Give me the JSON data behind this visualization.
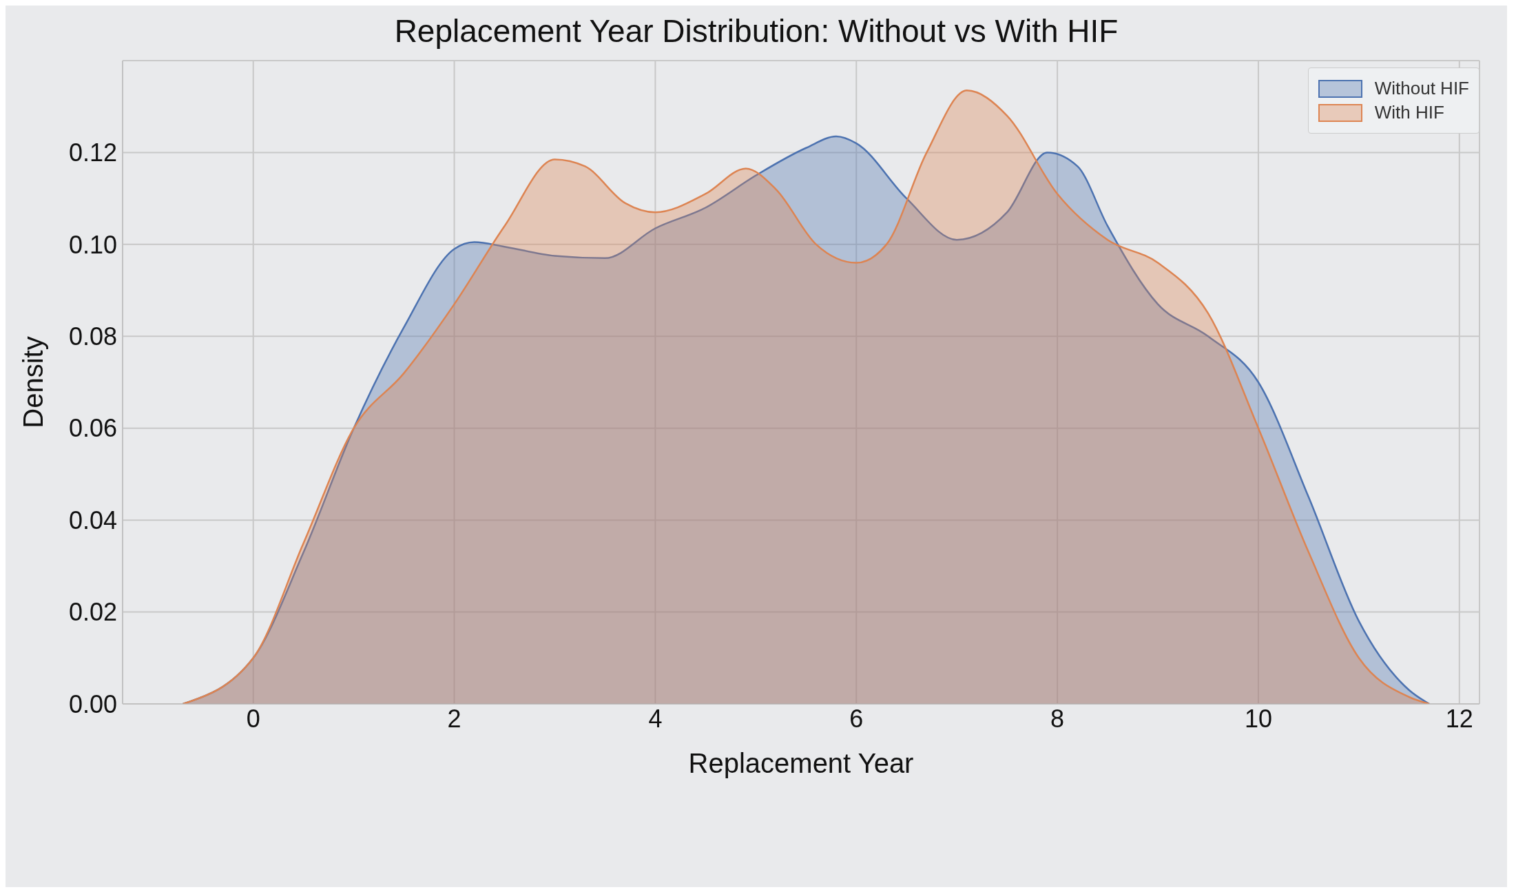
{
  "chart_data": {
    "type": "area",
    "title": "Replacement Year Distribution: Without vs With HIF",
    "xlabel": "Replacement Year",
    "ylabel": "Density",
    "xlim": [
      -1.3,
      12.2
    ],
    "xticks": [
      0,
      2,
      4,
      6,
      8,
      10,
      12
    ],
    "ylim": [
      0,
      0.14
    ],
    "yticks": [
      {
        "value": 0,
        "label": "0.00"
      },
      {
        "value": 0.02,
        "label": "0.02"
      },
      {
        "value": 0.04,
        "label": "0.04"
      },
      {
        "value": 0.06,
        "label": "0.06"
      },
      {
        "value": 0.08,
        "label": "0.08"
      },
      {
        "value": 0.1,
        "label": "0.10"
      },
      {
        "value": 0.12,
        "label": "0.12"
      }
    ],
    "grid": true,
    "legend": "top right",
    "series": [
      {
        "name": "Without HIF",
        "color": "#4c72b0",
        "x": [
          -0.7,
          0,
          0.5,
          1,
          1.5,
          2,
          2.2,
          2.5,
          3,
          3.5,
          4,
          4.5,
          5,
          5.5,
          5.8,
          6,
          6.5,
          7,
          7.5,
          7.9,
          8.2,
          8.5,
          9,
          9.5,
          10,
          10.5,
          11,
          11.5,
          11.7
        ],
        "values": [
          0,
          0.01,
          0.033,
          0.06,
          0.082,
          0.099,
          0.1005,
          0.0995,
          0.0975,
          0.097,
          0.1035,
          0.108,
          0.115,
          0.121,
          0.1235,
          0.122,
          0.11,
          0.101,
          0.107,
          0.12,
          0.117,
          0.104,
          0.087,
          0.08,
          0.07,
          0.045,
          0.018,
          0.003,
          0
        ]
      },
      {
        "name": "With HIF",
        "color": "#dd8452",
        "x": [
          -0.7,
          0,
          0.5,
          1,
          1.5,
          2,
          2.5,
          3,
          3.3,
          3.7,
          4,
          4.5,
          4.9,
          5.2,
          5.6,
          6,
          6.3,
          6.7,
          7.1,
          7.5,
          8,
          8.5,
          9,
          9.5,
          10,
          10.5,
          11,
          11.5,
          11.7
        ],
        "values": [
          0,
          0.01,
          0.035,
          0.06,
          0.072,
          0.087,
          0.104,
          0.1185,
          0.117,
          0.109,
          0.107,
          0.111,
          0.1165,
          0.112,
          0.1,
          0.096,
          0.1,
          0.12,
          0.1335,
          0.128,
          0.111,
          0.101,
          0.096,
          0.085,
          0.06,
          0.033,
          0.01,
          0.0015,
          0
        ]
      }
    ]
  }
}
